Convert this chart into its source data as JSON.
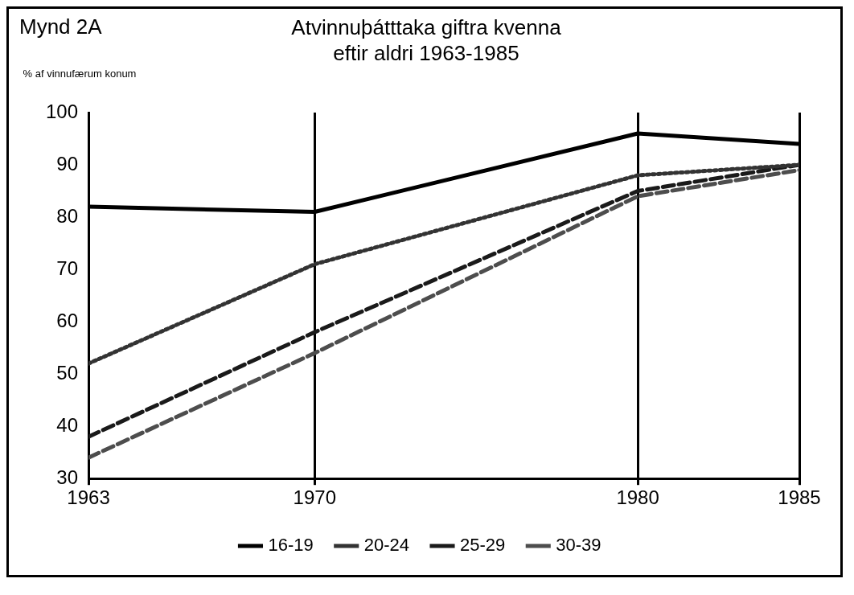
{
  "chart_data": {
    "type": "line",
    "title": "Atvinnuþátttaka giftra kvenna eftir aldri 1963-1985",
    "ylabel": "% af vinnufærum konum",
    "annotations": [
      "Mynd 2A"
    ],
    "x": [
      1963,
      1970,
      1980,
      1985
    ],
    "xlim": [
      1963,
      1985
    ],
    "xticks": [
      1963,
      1970,
      1980,
      1985
    ],
    "ylim": [
      30,
      100
    ],
    "yticks": [
      30,
      40,
      50,
      60,
      70,
      80,
      90,
      100
    ],
    "series": [
      {
        "name": "16-19",
        "color": "#000000",
        "values": [
          82,
          81,
          96,
          94
        ],
        "line_style": "solid"
      },
      {
        "name": "20-24",
        "color": "#333333",
        "values": [
          52,
          71,
          88,
          90
        ],
        "line_style": "dotted"
      },
      {
        "name": "25-29",
        "color": "#1a1a1a",
        "values": [
          38,
          58,
          85,
          90
        ],
        "line_style": "dashed"
      },
      {
        "name": "30-39",
        "color": "#4d4d4d",
        "values": [
          34,
          54,
          84,
          89
        ],
        "line_style": "dashed"
      }
    ],
    "grid": "x",
    "legend": "bottom",
    "marker": "none"
  }
}
